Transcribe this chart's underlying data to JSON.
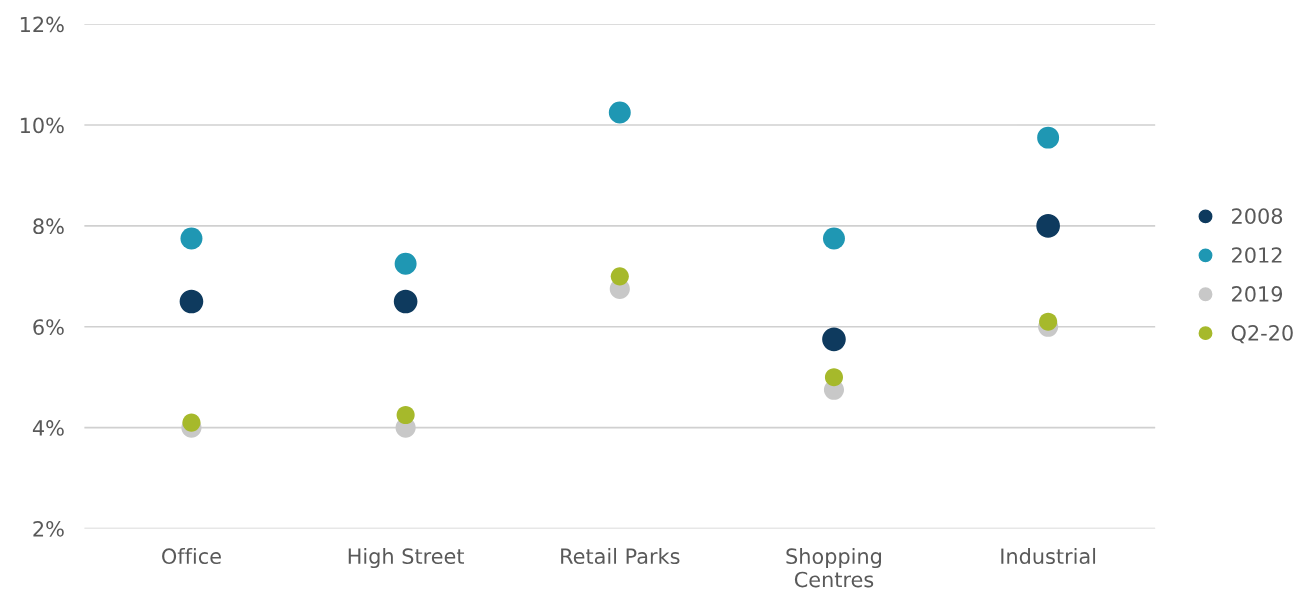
{
  "chart_data": {
    "type": "scatter",
    "categories": [
      "Office",
      "High Street",
      "Retail Parks",
      "Shopping\nCentres",
      "Industrial"
    ],
    "series": [
      {
        "name": "2008",
        "color": "#0e3a5e",
        "values": [
          6.5,
          6.5,
          null,
          5.75,
          8.0
        ]
      },
      {
        "name": "2012",
        "color": "#1f97b3",
        "values": [
          7.75,
          7.25,
          10.25,
          7.75,
          9.75
        ]
      },
      {
        "name": "2019",
        "color": "#c8c8c8",
        "values": [
          4.0,
          4.0,
          6.75,
          4.75,
          6.0
        ]
      },
      {
        "name": "Q2-20",
        "color": "#a6b92b",
        "values": [
          4.1,
          4.25,
          7.0,
          5.0,
          6.1
        ]
      }
    ],
    "ylim": [
      2,
      12
    ],
    "yticks": [
      {
        "value": 2,
        "label": "2%"
      },
      {
        "value": 4,
        "label": "4%"
      },
      {
        "value": 6,
        "label": "6%"
      },
      {
        "value": 8,
        "label": "8%"
      },
      {
        "value": 10,
        "label": "10%"
      },
      {
        "value": 12,
        "label": "12%"
      }
    ],
    "grid": "y",
    "legend": "right",
    "marker": "circle"
  }
}
